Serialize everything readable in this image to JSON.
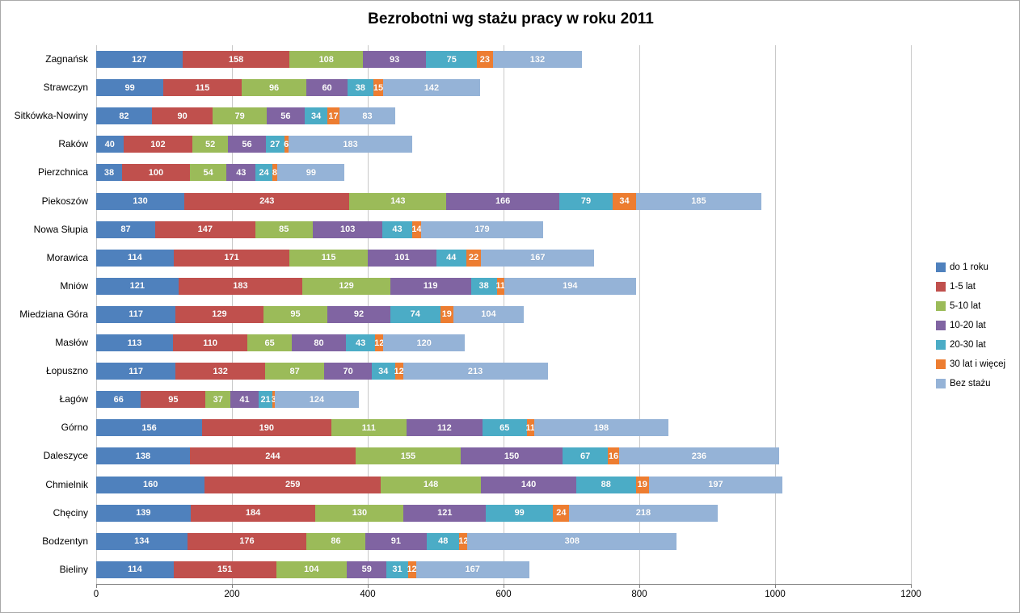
{
  "chart_data": {
    "type": "bar",
    "orientation": "horizontal",
    "stacked": true,
    "title": "Bezrobotni wg stażu pracy w roku 2011",
    "categories": [
      "Zagnańsk",
      "Strawczyn",
      "Sitkówka-Nowiny",
      "Raków",
      "Pierzchnica",
      "Piekoszów",
      "Nowa Słupia",
      "Morawica",
      "Mniów",
      "Miedziana Góra",
      "Masłów",
      "Łopuszno",
      "Łagów",
      "Górno",
      "Daleszyce",
      "Chmielnik",
      "Chęciny",
      "Bodzentyn",
      "Bieliny"
    ],
    "series": [
      {
        "name": "do 1 roku",
        "color": "#4F81BD",
        "values": [
          127,
          99,
          82,
          40,
          38,
          130,
          87,
          114,
          121,
          117,
          113,
          117,
          66,
          156,
          138,
          160,
          139,
          134,
          114
        ]
      },
      {
        "name": "1-5 lat",
        "color": "#C0504D",
        "values": [
          158,
          115,
          90,
          102,
          100,
          243,
          147,
          171,
          183,
          129,
          110,
          132,
          95,
          190,
          244,
          259,
          184,
          176,
          151
        ]
      },
      {
        "name": "5-10 lat",
        "color": "#9BBB59",
        "values": [
          108,
          96,
          79,
          52,
          54,
          143,
          85,
          115,
          129,
          95,
          65,
          87,
          37,
          111,
          155,
          148,
          130,
          86,
          104
        ]
      },
      {
        "name": "10-20 lat",
        "color": "#8064A2",
        "values": [
          93,
          60,
          56,
          56,
          43,
          166,
          103,
          101,
          119,
          92,
          80,
          70,
          41,
          112,
          150,
          140,
          121,
          91,
          59
        ]
      },
      {
        "name": "20-30 lat",
        "color": "#4BACC6",
        "values": [
          75,
          38,
          34,
          27,
          24,
          79,
          43,
          44,
          38,
          74,
          43,
          34,
          21,
          65,
          67,
          88,
          99,
          48,
          31
        ]
      },
      {
        "name": "30 lat i więcej",
        "color": "#ED7D31",
        "values": [
          23,
          15,
          17,
          6,
          8,
          34,
          14,
          22,
          11,
          19,
          12,
          12,
          3,
          11,
          16,
          19,
          24,
          12,
          12
        ]
      },
      {
        "name": "Bez stażu",
        "color": "#95B3D7",
        "values": [
          132,
          142,
          83,
          183,
          99,
          185,
          179,
          167,
          194,
          104,
          120,
          213,
          124,
          198,
          236,
          197,
          218,
          308,
          167
        ]
      }
    ],
    "xlim": [
      0,
      1200
    ],
    "xticks": [
      0,
      200,
      400,
      600,
      800,
      1000,
      1200
    ],
    "legend_position": "right",
    "gridlines": "vertical",
    "grid_color": "#C9C9C9",
    "axis_color": "#808080",
    "value_label_color": "#FFFFFF"
  }
}
